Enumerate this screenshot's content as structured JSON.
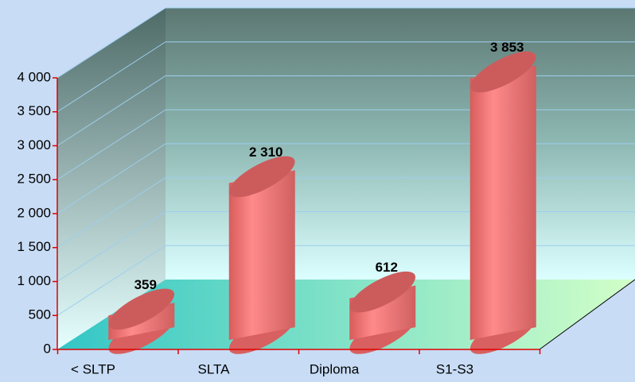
{
  "chart_data": {
    "type": "bar",
    "categories": [
      "< SLTP",
      "SLTA",
      "Diploma",
      "S1-S3"
    ],
    "values": [
      359,
      2310,
      612,
      3853
    ],
    "value_labels": [
      "359",
      "2 310",
      "612",
      "3 853"
    ],
    "color": "#f07878",
    "ylim": [
      0,
      4000
    ],
    "yticks": [
      0,
      500,
      {
        "value": 1000,
        "label": "1 000"
      },
      {
        "value": 1500,
        "label": "1 500"
      },
      {
        "value": 2000,
        "label": "2 000"
      },
      {
        "value": 2500,
        "label": "2 500"
      },
      {
        "value": 3000,
        "label": "3 000"
      },
      {
        "value": 3500,
        "label": "3 500"
      },
      {
        "value": 4000,
        "label": "4 000"
      }
    ],
    "grid": true
  }
}
